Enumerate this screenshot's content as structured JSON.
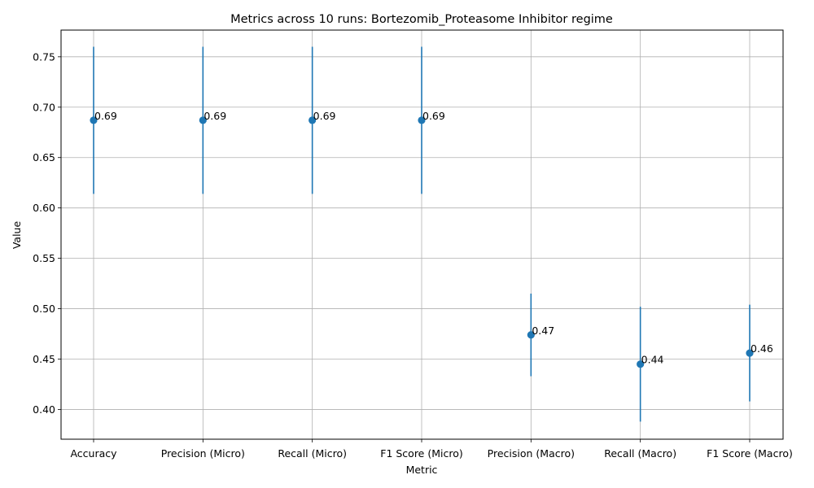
{
  "chart_data": {
    "type": "scatter",
    "title": "Metrics across 10 runs: Bortezomib_Proteasome Inhibitor regime",
    "xlabel": "Metric",
    "ylabel": "Value",
    "categories": [
      "Accuracy",
      "Precision (Micro)",
      "Recall (Micro)",
      "F1 Score (Micro)",
      "Precision (Macro)",
      "Recall (Macro)",
      "F1 Score (Macro)"
    ],
    "values": [
      0.687,
      0.687,
      0.687,
      0.687,
      0.474,
      0.445,
      0.456
    ],
    "error": [
      0.073,
      0.073,
      0.073,
      0.073,
      0.041,
      0.057,
      0.048
    ],
    "value_labels": [
      "0.69",
      "0.69",
      "0.69",
      "0.69",
      "0.47",
      "0.44",
      "0.46"
    ],
    "ylim": [
      0.3705,
      0.7765
    ],
    "yticks": [
      0.4,
      0.45,
      0.5,
      0.55,
      0.6,
      0.65,
      0.7,
      0.75
    ],
    "ytick_labels": [
      "0.40",
      "0.45",
      "0.50",
      "0.55",
      "0.60",
      "0.65",
      "0.70",
      "0.75"
    ],
    "grid": true,
    "color": "#1f77b4"
  }
}
